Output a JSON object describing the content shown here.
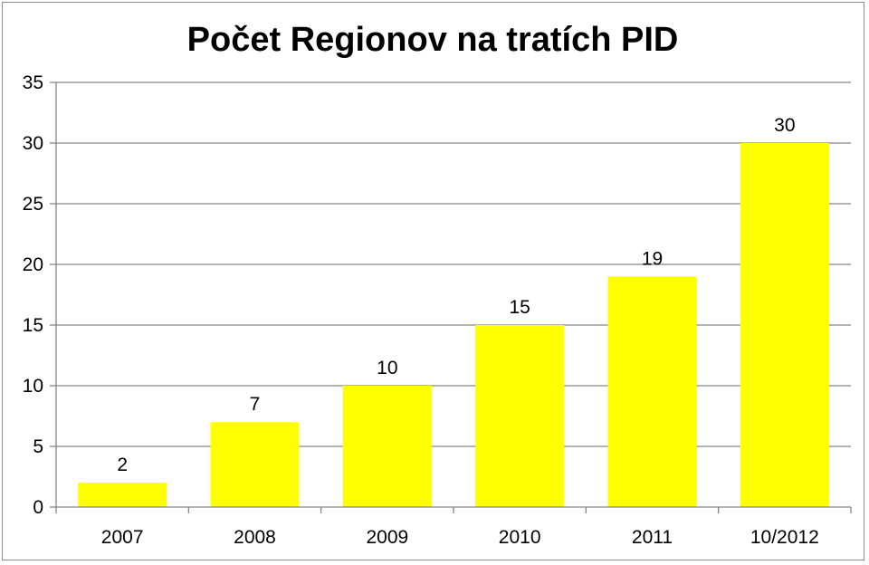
{
  "chart_data": {
    "type": "bar",
    "title": "Počet Regionov na tratích PID",
    "categories": [
      "2007",
      "2008",
      "2009",
      "2010",
      "2011",
      "10/2012"
    ],
    "values": [
      2,
      7,
      10,
      15,
      19,
      30
    ],
    "ylim": [
      0,
      35
    ],
    "y_ticks": [
      "0",
      "5",
      "10",
      "15",
      "20",
      "25",
      "30",
      "35"
    ],
    "grid": true,
    "legend": "none",
    "bar_color": "#FFFF00",
    "gridline_color": "#868686"
  }
}
